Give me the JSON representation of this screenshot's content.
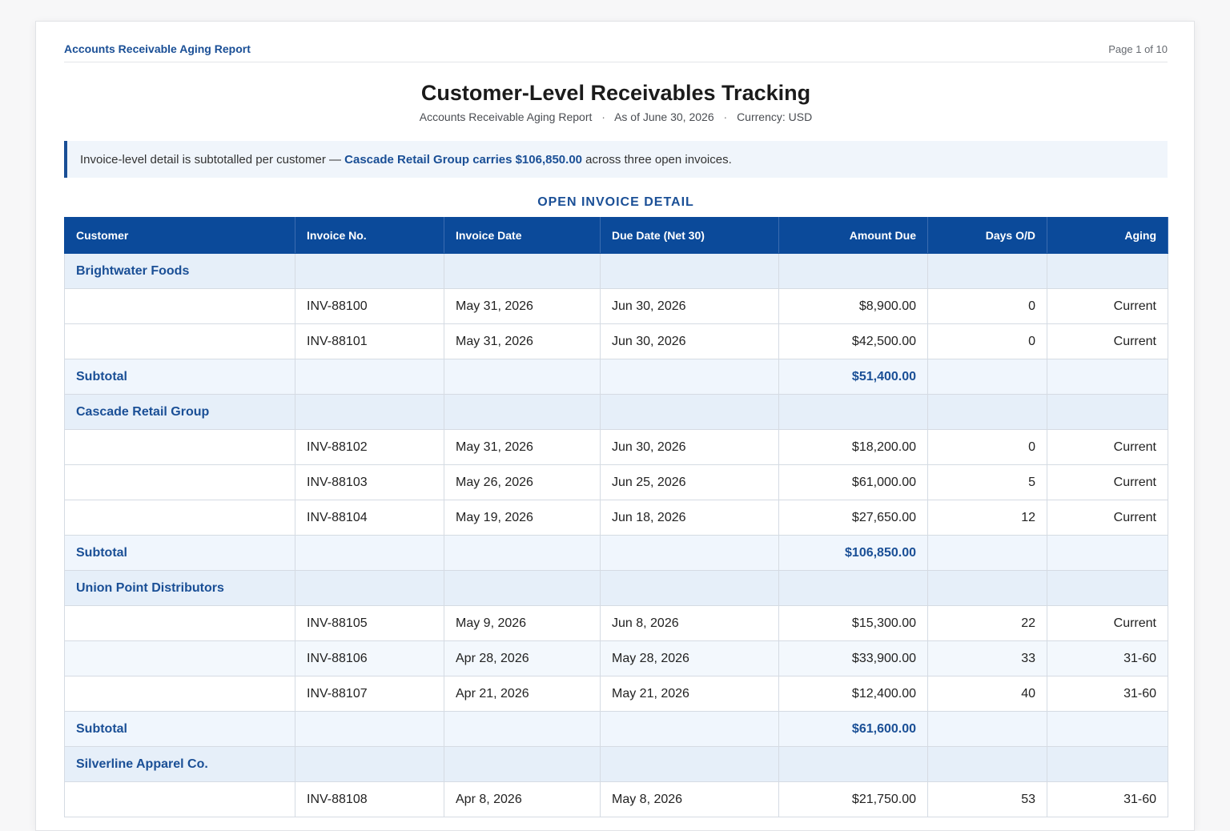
{
  "header": {
    "doc_label": "Accounts Receivable Aging Report",
    "page_indicator": "Page 1 of 10"
  },
  "title": "Customer-Level Receivables Tracking",
  "subtitle": {
    "report_name": "Accounts Receivable Aging Report",
    "as_of": "As of June 30, 2026",
    "currency": "Currency: USD",
    "separator": "·"
  },
  "callout": {
    "prefix": "Invoice-level detail is subtotalled per customer — ",
    "highlight": "Cascade Retail Group carries $106,850.00",
    "suffix": " across three open invoices."
  },
  "section_heading": "OPEN INVOICE DETAIL",
  "table": {
    "headers": [
      "Customer",
      "Invoice No.",
      "Invoice Date",
      "Due Date (Net 30)",
      "Amount Due",
      "Days O/D",
      "Aging"
    ],
    "subtotal_label": "Subtotal",
    "groups": [
      {
        "customer": "Brightwater Foods",
        "rows": [
          [
            "INV-88100",
            "May 31, 2026",
            "Jun 30, 2026",
            "$8,900.00",
            "0",
            "Current"
          ],
          [
            "INV-88101",
            "May 31, 2026",
            "Jun 30, 2026",
            "$42,500.00",
            "0",
            "Current"
          ]
        ],
        "subtotal": "$51,400.00"
      },
      {
        "customer": "Cascade Retail Group",
        "rows": [
          [
            "INV-88102",
            "May 31, 2026",
            "Jun 30, 2026",
            "$18,200.00",
            "0",
            "Current"
          ],
          [
            "INV-88103",
            "May 26, 2026",
            "Jun 25, 2026",
            "$61,000.00",
            "5",
            "Current"
          ],
          [
            "INV-88104",
            "May 19, 2026",
            "Jun 18, 2026",
            "$27,650.00",
            "12",
            "Current"
          ]
        ],
        "subtotal": "$106,850.00"
      },
      {
        "customer": "Union Point Distributors",
        "rows": [
          [
            "INV-88105",
            "May 9, 2026",
            "Jun 8, 2026",
            "$15,300.00",
            "22",
            "Current"
          ],
          [
            "INV-88106",
            "Apr 28, 2026",
            "May 28, 2026",
            "$33,900.00",
            "33",
            "31-60"
          ],
          [
            "INV-88107",
            "Apr 21, 2026",
            "May 21, 2026",
            "$12,400.00",
            "40",
            "31-60"
          ]
        ],
        "subtotal": "$61,600.00"
      },
      {
        "customer": "Silverline Apparel Co.",
        "rows": [
          [
            "INV-88108",
            "Apr 8, 2026",
            "May 8, 2026",
            "$21,750.00",
            "53",
            "31-60"
          ]
        ],
        "subtotal": null
      }
    ]
  }
}
